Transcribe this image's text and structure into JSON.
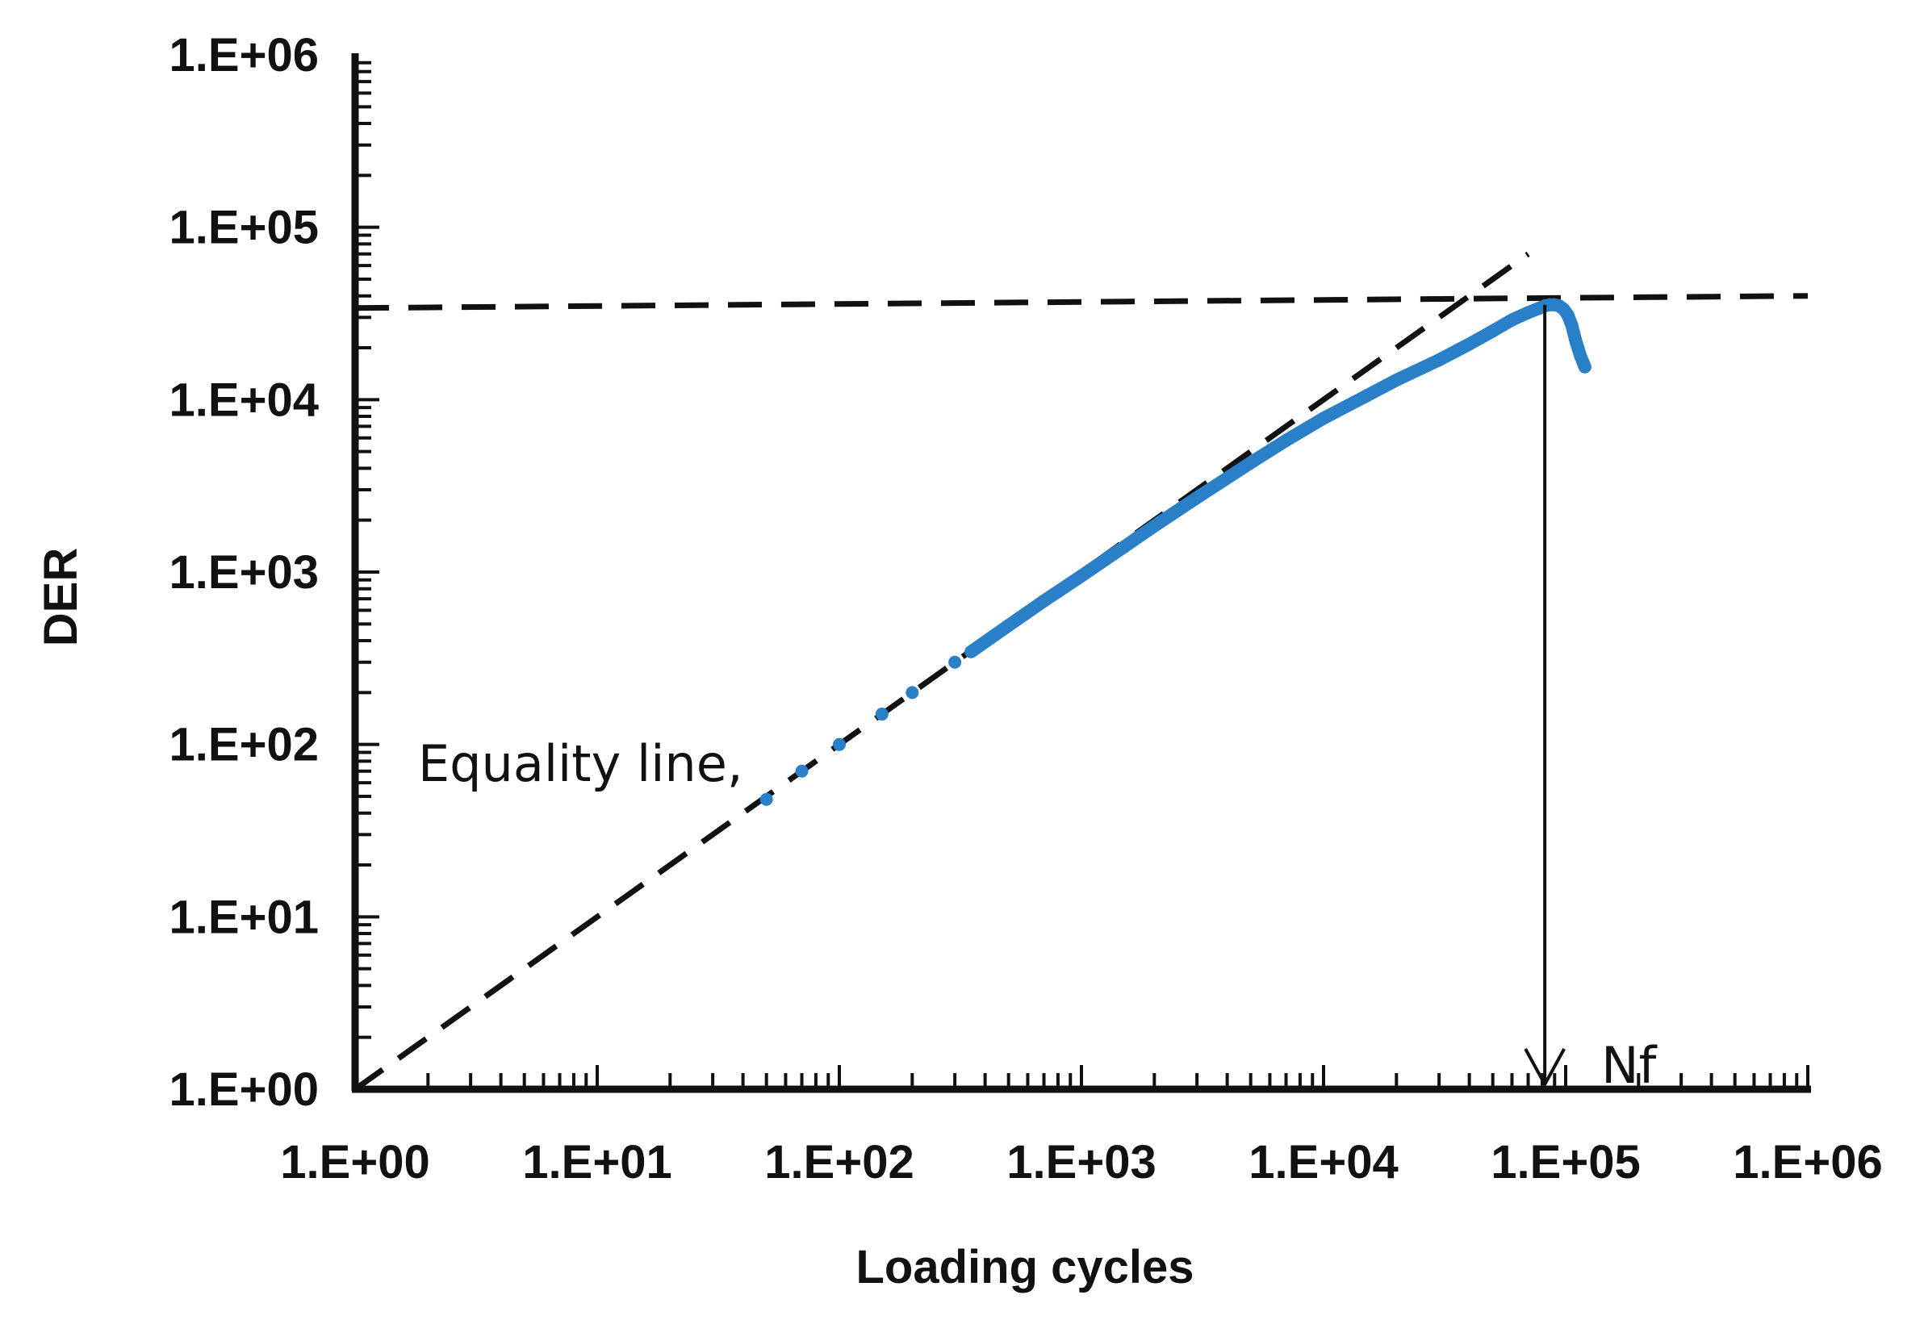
{
  "chart_data": {
    "type": "scatter",
    "xlabel": "Loading cycles",
    "ylabel": "DER",
    "x_scale": "log",
    "y_scale": "log",
    "xlim": [
      1,
      1000000
    ],
    "ylim": [
      1,
      1000000
    ],
    "x_ticks": [
      "1.E+00",
      "1.E+01",
      "1.E+02",
      "1.E+03",
      "1.E+04",
      "1.E+05",
      "1.E+06"
    ],
    "y_ticks": [
      "1.E+00",
      "1.E+01",
      "1.E+02",
      "1.E+03",
      "1.E+04",
      "1.E+05",
      "1.E+06"
    ],
    "grid": false,
    "legend": "none",
    "series": [
      {
        "color": "#2a7fc9",
        "x": [
          50,
          70,
          100,
          150,
          200,
          300,
          350,
          500,
          700,
          1000,
          1500,
          2000,
          3000,
          5000,
          7000,
          10000,
          15000,
          20000,
          30000,
          40000,
          50000,
          60000,
          70000,
          78000,
          82000,
          86000,
          90000,
          94000,
          98000,
          102000,
          106000,
          110000,
          115000,
          120000
        ],
        "y": [
          48,
          70,
          100,
          150,
          200,
          300,
          345,
          490,
          680,
          950,
          1400,
          1850,
          2700,
          4300,
          5800,
          7800,
          10500,
          13000,
          17000,
          21000,
          25000,
          29000,
          32000,
          34000,
          35000,
          35500,
          35500,
          35000,
          33500,
          31000,
          27000,
          22000,
          18000,
          15500
        ]
      }
    ],
    "reference_lines": [
      {
        "label": "Equality line,",
        "style": "dashed",
        "color": "#111111",
        "x": [
          1,
          70000
        ],
        "y": [
          1,
          70000
        ]
      },
      {
        "style": "dashed",
        "color": "#111111",
        "x": [
          1,
          1000000
        ],
        "y": [
          34000,
          40000
        ]
      }
    ],
    "annotations": [
      {
        "text": "Equality line,",
        "x": 35,
        "y": 80
      },
      {
        "text": "Nf",
        "x": 82000,
        "y": 1,
        "arrow": "vertical",
        "from_y": 35500,
        "to_y": 1
      }
    ]
  }
}
